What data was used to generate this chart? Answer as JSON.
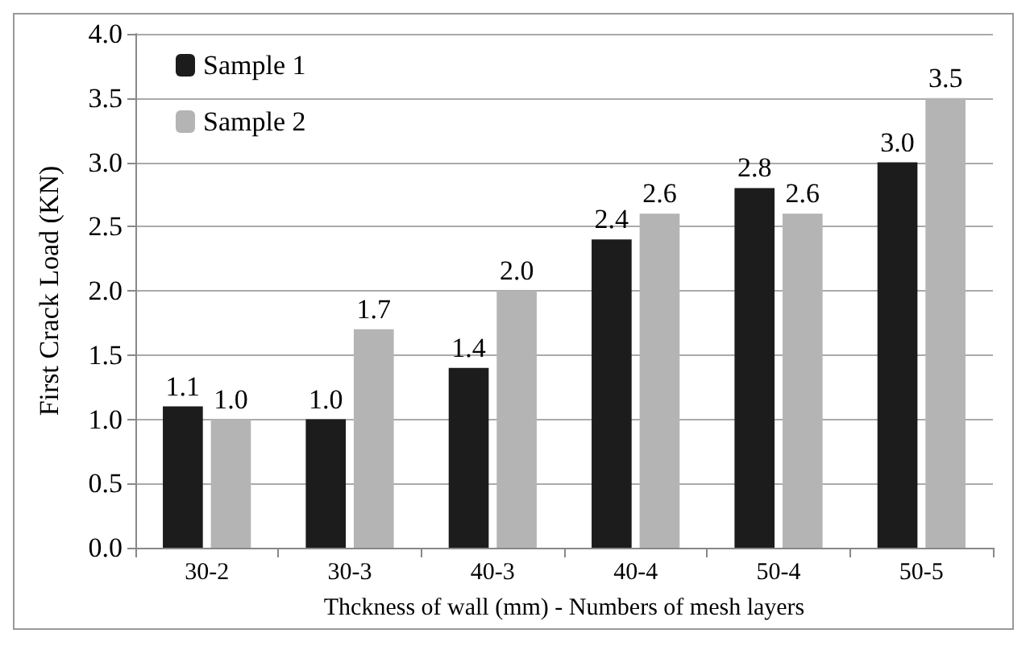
{
  "chart_data": {
    "type": "bar",
    "xlabel": "Thckness of wall (mm) - Numbers of mesh layers",
    "ylabel": "First Crack Load (KN)",
    "categories": [
      "30-2",
      "30-3",
      "40-3",
      "40-4",
      "50-4",
      "50-5"
    ],
    "series": [
      {
        "name": "Sample 1",
        "color": "#1c1c1c",
        "values": [
          1.1,
          1.0,
          1.4,
          2.4,
          2.8,
          3.0
        ],
        "value_labels": [
          "1.1",
          "1.0",
          "1.4",
          "2.4",
          "2.8",
          "3.0"
        ]
      },
      {
        "name": "Sample 2",
        "color": "#b4b4b4",
        "values": [
          1.0,
          1.7,
          2.0,
          2.6,
          2.6,
          3.5
        ],
        "value_labels": [
          "1.0",
          "1.7",
          "2.0",
          "2.6",
          "2.6",
          "3.5"
        ]
      }
    ],
    "ylim": [
      0,
      4
    ],
    "yticks": [
      {
        "value": 0,
        "label": "0.0"
      },
      0.5,
      {
        "value": 1,
        "label": "1.0"
      },
      1.5,
      {
        "value": 2,
        "label": "2.0"
      },
      2.5,
      {
        "value": 3,
        "label": "3.0"
      },
      3.5,
      {
        "value": 4,
        "label": "4.0"
      }
    ],
    "grid": "y",
    "legend": "top left"
  }
}
